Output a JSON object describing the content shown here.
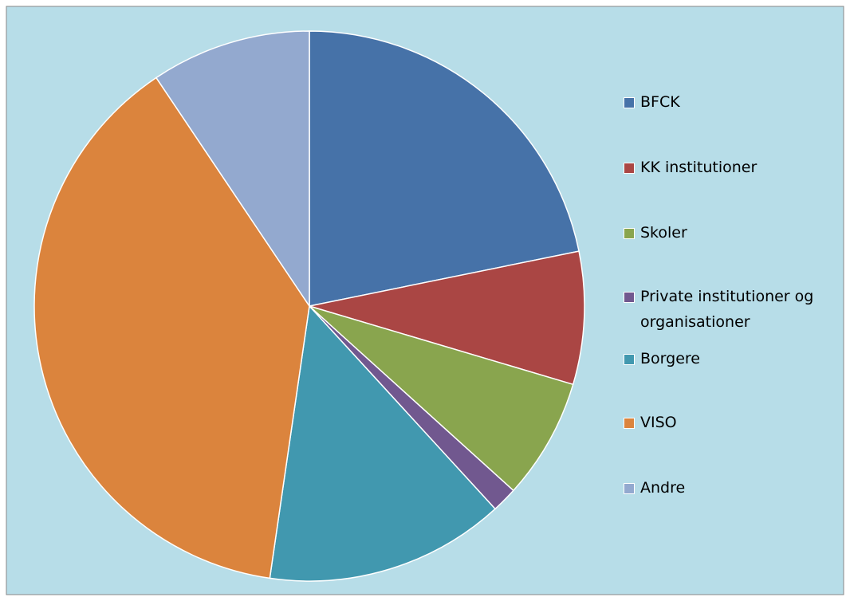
{
  "chart_data": {
    "type": "pie",
    "categories": [
      "BFCK",
      "KK institutioner",
      "Skoler",
      "Private institutioner og organisationer",
      "Borgere",
      "VISO",
      "Andre"
    ],
    "values": [
      21.8,
      7.8,
      7.1,
      1.5,
      14.1,
      38.3,
      9.4
    ],
    "colors": [
      "#4672a8",
      "#aa4644",
      "#89a54e",
      "#71588f",
      "#4198af",
      "#db843d",
      "#93a9cf"
    ],
    "legend": "right"
  }
}
